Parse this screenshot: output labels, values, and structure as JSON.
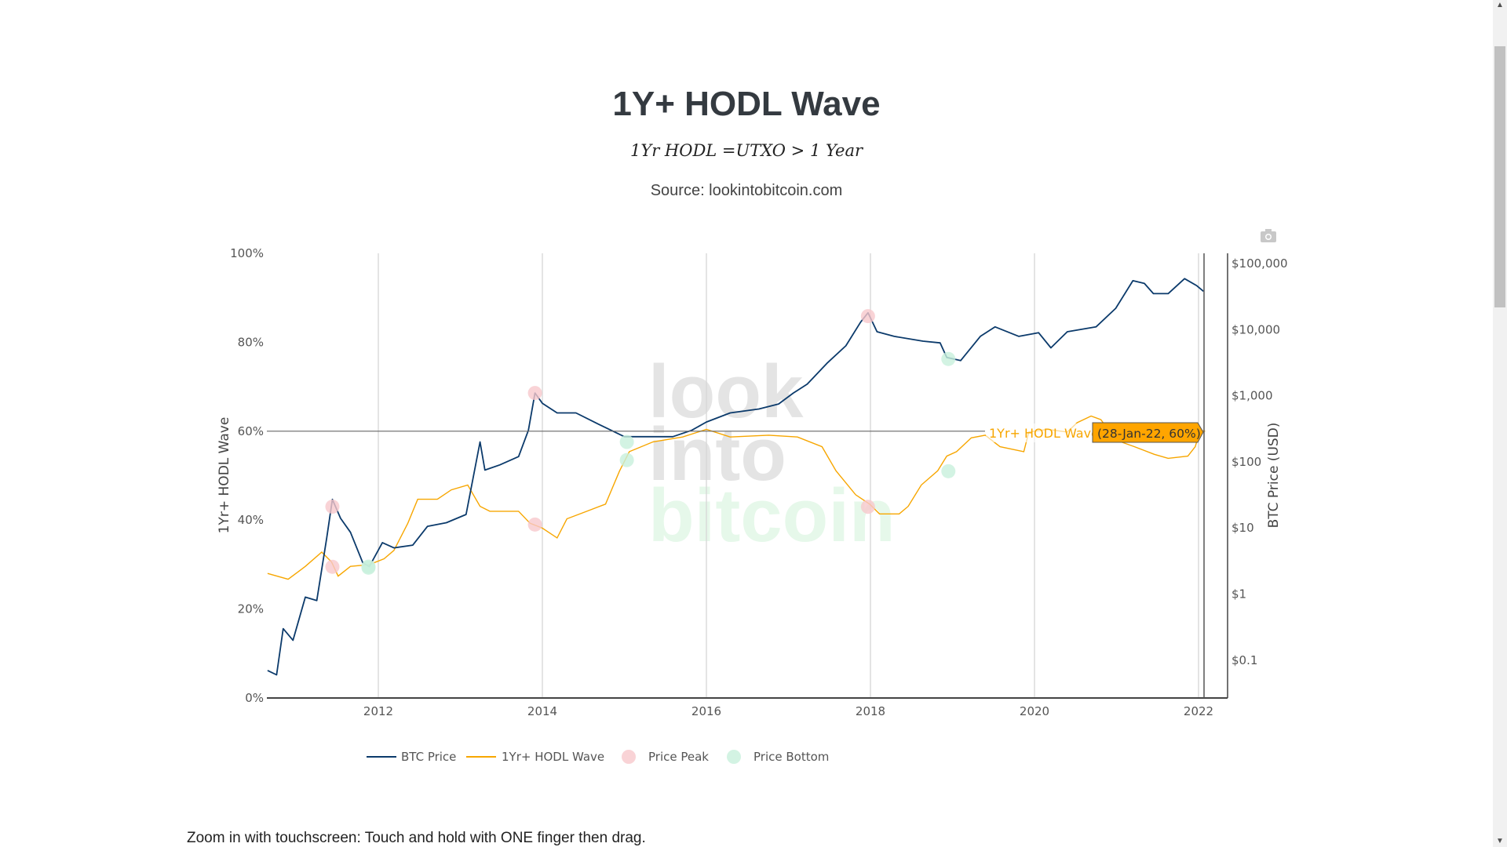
{
  "header": {
    "title": "1Y+ HODL Wave",
    "formula": "1Yr HODL =UTXO > 1 Year",
    "source": "Source: lookintobitcoin.com"
  },
  "footer": {
    "hint": "Zoom in with touchscreen: Touch and hold with ONE finger then drag."
  },
  "watermark": {
    "line1": "look",
    "line2": "into",
    "line3": "bitcoin"
  },
  "toolbar": {
    "camera_icon": "camera-icon"
  },
  "colors": {
    "btc": "#0b3a6b",
    "hodl": "#f7a600",
    "peak": "#f8c8cc",
    "bottom": "#c8f0dc",
    "tooltip": "#ffa500"
  },
  "hover": {
    "series_label": "1Yr+ HODL Wave",
    "value_label": "(28-Jan-22, 60%)",
    "date_decimal_year": 2022.08,
    "value": 60
  },
  "chart_data": {
    "type": "line",
    "title": "1Y+ HODL Wave",
    "xlabel": "",
    "ylabel": "1Yr+ HODL Wave",
    "y2label": "BTC Price (USD)",
    "xlim": [
      2010.65,
      2022.08
    ],
    "ylim": [
      0,
      100
    ],
    "y2lim_log": [
      0.02,
      150000
    ],
    "x_ticks": [
      "2012",
      "2014",
      "2016",
      "2018",
      "2020",
      "2022"
    ],
    "x_tick_values": [
      2012,
      2014,
      2016,
      2018,
      2020,
      2022
    ],
    "y_ticks": [
      "0%",
      "20%",
      "40%",
      "60%",
      "80%",
      "100%"
    ],
    "y_tick_values": [
      0,
      20,
      40,
      60,
      80,
      100
    ],
    "y2_ticks": [
      "$0.1",
      "$1",
      "$10",
      "$100",
      "$1,000",
      "$10,000",
      "$100,000"
    ],
    "y2_tick_values": [
      0.1,
      1,
      10,
      100,
      1000,
      10000,
      100000
    ],
    "legend": [
      "BTC Price",
      "1Yr+ HODL Wave",
      "Price Peak",
      "Price Bottom"
    ],
    "legend_position": "bottom",
    "btc_price": {
      "x": [
        2010.65,
        2010.76,
        2010.84,
        2010.96,
        2011.11,
        2011.25,
        2011.37,
        2011.44,
        2011.54,
        2011.66,
        2011.81,
        2011.89,
        2012.05,
        2012.19,
        2012.42,
        2012.6,
        2012.83,
        2013.07,
        2013.24,
        2013.3,
        2013.48,
        2013.71,
        2013.83,
        2013.91,
        2014.0,
        2014.18,
        2014.41,
        2014.65,
        2015.0,
        2015.24,
        2015.59,
        2015.82,
        2016.0,
        2016.29,
        2016.64,
        2016.88,
        2017.06,
        2017.23,
        2017.47,
        2017.7,
        2017.88,
        2017.97,
        2018.08,
        2018.29,
        2018.64,
        2018.85,
        2018.93,
        2019.1,
        2019.34,
        2019.52,
        2019.81,
        2020.05,
        2020.2,
        2020.4,
        2020.75,
        2020.99,
        2021.2,
        2021.34,
        2021.45,
        2021.63,
        2021.83,
        2021.98,
        2022.06
      ],
      "y": [
        0.07,
        0.06,
        0.3,
        0.2,
        0.9,
        0.8,
        7,
        27,
        14,
        8.6,
        3,
        2.6,
        6,
        5,
        5.5,
        10.6,
        12,
        16,
        200,
        75,
        90,
        120,
        300,
        1100,
        770,
        550,
        550,
        390,
        240,
        240,
        240,
        300,
        400,
        550,
        630,
        750,
        1100,
        1500,
        3100,
        5700,
        13000,
        18000,
        9300,
        7900,
        6700,
        6300,
        3800,
        3400,
        7900,
        11000,
        7900,
        9000,
        5300,
        9300,
        11000,
        21000,
        55000,
        50000,
        35000,
        35000,
        59000,
        46000,
        38000
      ]
    },
    "hodl_wave": {
      "x": [
        2010.65,
        2010.9,
        2011.11,
        2011.31,
        2011.43,
        2011.51,
        2011.66,
        2011.89,
        2012.07,
        2012.19,
        2012.36,
        2012.48,
        2012.72,
        2012.89,
        2013.09,
        2013.24,
        2013.36,
        2013.71,
        2013.85,
        2014.0,
        2014.18,
        2014.3,
        2014.53,
        2014.77,
        2014.94,
        2015.06,
        2015.35,
        2015.71,
        2016.0,
        2016.29,
        2016.76,
        2017.11,
        2017.41,
        2017.58,
        2017.82,
        2017.99,
        2018.11,
        2018.35,
        2018.46,
        2018.62,
        2018.82,
        2018.93,
        2019.05,
        2019.23,
        2019.4,
        2019.58,
        2019.87,
        2019.93,
        2020.16,
        2020.4,
        2020.52,
        2020.69,
        2020.81,
        2020.99,
        2021.22,
        2021.46,
        2021.63,
        2021.87,
        2021.96,
        2022.02,
        2022.08
      ],
      "y": [
        28,
        26.7,
        29.6,
        32.8,
        30.6,
        27.4,
        29.6,
        30,
        31.3,
        33.2,
        39.3,
        44.7,
        44.7,
        46.8,
        47.9,
        43.1,
        42,
        42,
        39.3,
        38.2,
        36,
        40.3,
        41.9,
        43.6,
        51,
        55.4,
        57.6,
        58.7,
        60.4,
        58.7,
        59.1,
        58.7,
        56.5,
        51.1,
        45.7,
        43.6,
        41.4,
        41.4,
        43.1,
        47.9,
        51.1,
        54.4,
        55.4,
        58.5,
        59.1,
        56.5,
        55.4,
        59.8,
        60.4,
        59.8,
        61.9,
        63.4,
        62.6,
        58,
        56.5,
        54.8,
        53.9,
        54.4,
        56.5,
        60.2,
        60
      ]
    },
    "price_peaks": [
      {
        "x": 2011.44,
        "price": 21,
        "hodl": 29.5
      },
      {
        "x": 2013.91,
        "price": 1100,
        "hodl": 39
      },
      {
        "x": 2017.97,
        "price": 16000,
        "hodl": 43
      }
    ],
    "price_bottoms": [
      {
        "x": 2011.88,
        "price": 2.6,
        "hodl": 29.3
      },
      {
        "x": 2015.03,
        "price": 200,
        "hodl": 53.5
      },
      {
        "x": 2018.95,
        "price": 3600,
        "hodl": 51
      }
    ]
  }
}
